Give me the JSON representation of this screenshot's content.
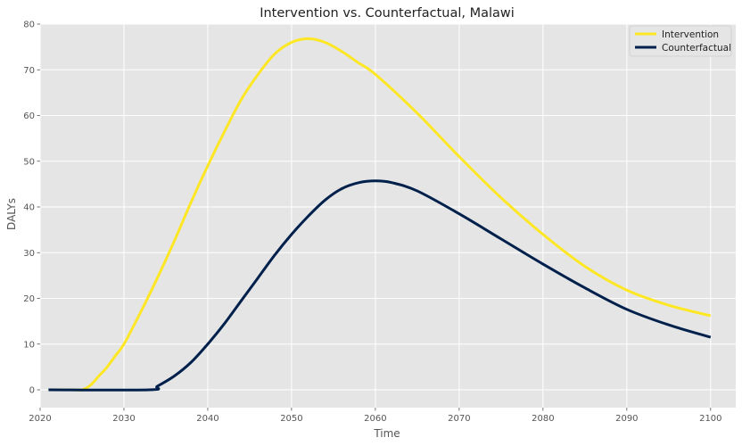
{
  "chart_data": {
    "type": "line",
    "title": "Intervention vs. Counterfactual, Malawi",
    "xlabel": "Time",
    "ylabel": "DALYs",
    "xlim": [
      2020,
      2103
    ],
    "ylim": [
      -3.9,
      80
    ],
    "xticks": [
      2020,
      2030,
      2040,
      2050,
      2060,
      2070,
      2080,
      2090,
      2100
    ],
    "yticks": [
      0,
      10,
      20,
      30,
      40,
      50,
      60,
      70,
      80
    ],
    "grid": true,
    "legend_position": "top-right",
    "series": [
      {
        "name": "Intervention",
        "color": "#fde725",
        "x": [
          2021,
          2024,
          2025,
          2026,
          2027,
          2028,
          2029,
          2030,
          2032,
          2034,
          2036,
          2038,
          2040,
          2042,
          2044,
          2046,
          2048,
          2050,
          2052,
          2054,
          2056,
          2058,
          2060,
          2065,
          2070,
          2075,
          2080,
          2085,
          2090,
          2095,
          2100
        ],
        "y": [
          0,
          0,
          0,
          1,
          3,
          5,
          7.5,
          10,
          17,
          24.5,
          32.5,
          41,
          49,
          56.5,
          63.5,
          69,
          73.5,
          76,
          76.8,
          76,
          74,
          71.5,
          69,
          60.5,
          51,
          42,
          34,
          27,
          21.8,
          18.5,
          16.2
        ]
      },
      {
        "name": "Counterfactual",
        "color": "#00204c",
        "x": [
          2021,
          2033,
          2034,
          2036,
          2038,
          2040,
          2042,
          2044,
          2046,
          2048,
          2050,
          2052,
          2054,
          2056,
          2058,
          2060,
          2062,
          2065,
          2070,
          2075,
          2080,
          2085,
          2090,
          2095,
          2100
        ],
        "y": [
          0,
          0,
          0.8,
          3,
          6,
          10,
          14.5,
          19.5,
          24.5,
          29.5,
          34,
          38,
          41.5,
          44,
          45.3,
          45.7,
          45.3,
          43.5,
          38.5,
          33,
          27.5,
          22.3,
          17.6,
          14.2,
          11.5
        ]
      }
    ]
  }
}
